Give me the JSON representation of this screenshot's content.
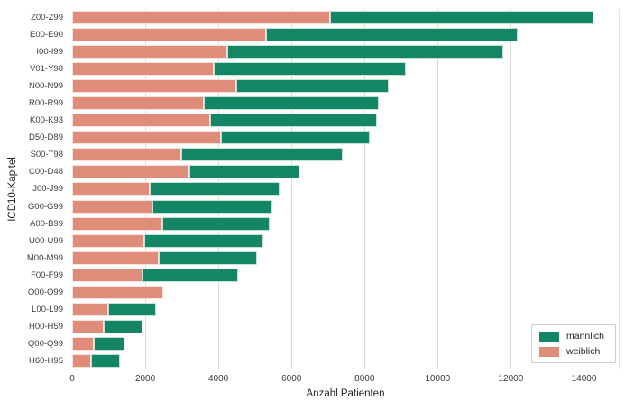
{
  "chart_data": {
    "type": "bar",
    "orientation": "horizontal",
    "stacked": true,
    "title": "",
    "xlabel": "Anzahl Patienten",
    "ylabel": "ICD10-Kapitel",
    "categories": [
      "Z00-Z99",
      "E00-E90",
      "I00-I99",
      "V01-Y98",
      "N00-N99",
      "R00-R99",
      "K00-K93",
      "D50-D89",
      "S00-T98",
      "C00-D48",
      "J00-J99",
      "G00-G99",
      "A00-B99",
      "U00-U99",
      "M00-M99",
      "F00-F99",
      "O00-O99",
      "L00-L99",
      "H00-H59",
      "Q00-Q99",
      "H60-H95"
    ],
    "series": [
      {
        "name": "männlich",
        "color": "#148666",
        "values": [
          7200,
          6870,
          7550,
          5270,
          4170,
          4780,
          4550,
          4080,
          4410,
          3000,
          3560,
          3290,
          2950,
          3260,
          2690,
          2620,
          0,
          1310,
          1070,
          840,
          770
        ]
      },
      {
        "name": "weiblich",
        "color": "#e08c7a",
        "values": [
          7060,
          5310,
          4240,
          3870,
          4490,
          3600,
          3780,
          4060,
          2990,
          3210,
          2110,
          2190,
          2460,
          1980,
          2370,
          1920,
          2500,
          990,
          860,
          600,
          530
        ]
      }
    ],
    "stack_order": [
      "weiblich",
      "männlich"
    ],
    "x_ticks": [
      0,
      2000,
      4000,
      6000,
      8000,
      10000,
      12000,
      14000
    ],
    "xlim": [
      0,
      14950
    ],
    "grid": true,
    "gridline_color": "#d9d9d9",
    "background": "#ffffff",
    "legend_position": "lower right"
  },
  "legend": {
    "items": [
      {
        "label": "männlich",
        "color": "#148666"
      },
      {
        "label": "weiblich",
        "color": "#e08c7a"
      }
    ]
  }
}
